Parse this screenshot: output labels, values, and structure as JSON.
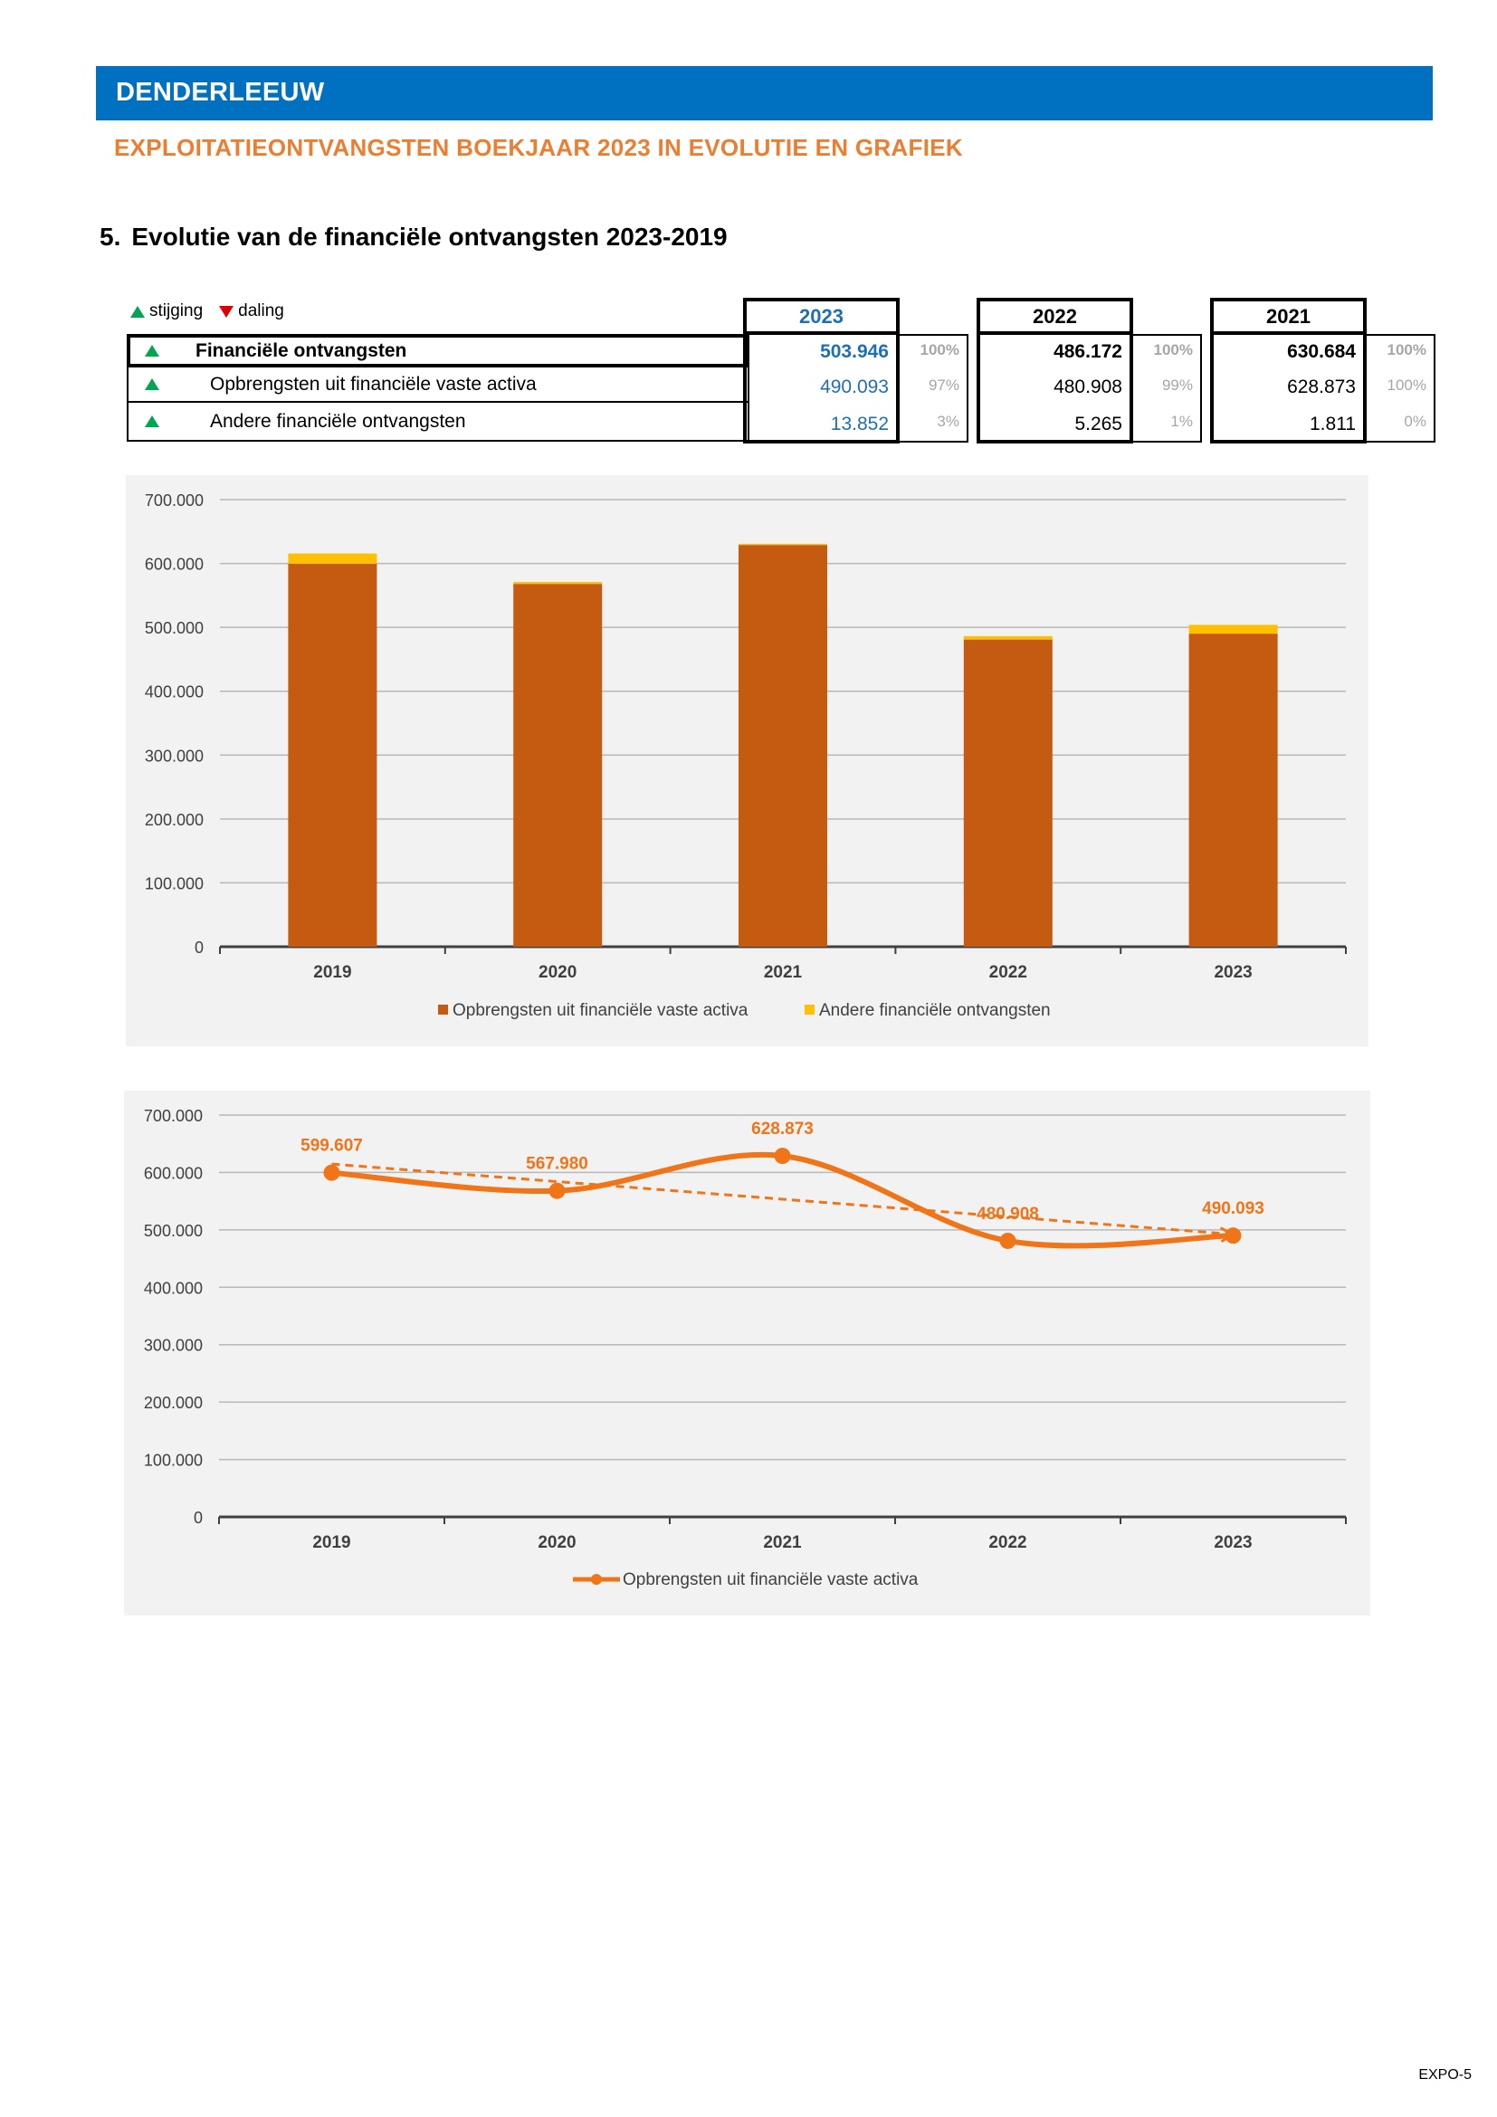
{
  "header": {
    "title": "DENDERLEEUW"
  },
  "subtitle": "EXPLOITATIEONTVANGSTEN BOEKJAAR 2023 IN EVOLUTIE EN GRAFIEK",
  "section": {
    "number": "5.",
    "title": "Evolutie van de financiële ontvangsten 2023-2019"
  },
  "legend_key": {
    "up": "stijging",
    "down": "daling"
  },
  "colors": {
    "header": "#0070c0",
    "subtitle": "#ed7d31",
    "current_year": "#1f6fb5",
    "up": "#00a651",
    "down": "#e00000",
    "series_main": "#c55a11",
    "series_other": "#ffc000",
    "line": "#f07418"
  },
  "table": {
    "rows": [
      {
        "label": "Financiële ontvangsten",
        "trend": "up",
        "bold": true
      },
      {
        "label": "Opbrengsten uit financiële vaste activa",
        "trend": "up",
        "bold": false
      },
      {
        "label": "Andere financiële ontvangsten",
        "trend": "up",
        "bold": false
      }
    ],
    "years": [
      {
        "year": "2023",
        "values": [
          "503.946",
          "490.093",
          "13.852"
        ],
        "pcts": [
          "100%",
          "97%",
          "3%"
        ]
      },
      {
        "year": "2022",
        "values": [
          "486.172",
          "480.908",
          "5.265"
        ],
        "pcts": [
          "100%",
          "99%",
          "1%"
        ]
      },
      {
        "year": "2021",
        "values": [
          "630.684",
          "628.873",
          "1.811"
        ],
        "pcts": [
          "100%",
          "100%",
          "0%"
        ]
      }
    ]
  },
  "chart_data": [
    {
      "type": "bar",
      "stacked": true,
      "categories": [
        "2019",
        "2020",
        "2021",
        "2022",
        "2023"
      ],
      "series": [
        {
          "name": "Opbrengsten uit financiële vaste activa",
          "values": [
            599607,
            567980,
            628873,
            480908,
            490093
          ],
          "color": "#c55a11"
        },
        {
          "name": "Andere financiële ontvangsten",
          "values": [
            16000,
            3000,
            1811,
            5265,
            13852
          ],
          "color": "#ffc000"
        }
      ],
      "ylim": [
        0,
        700000
      ],
      "yticks": [
        "0",
        "100.000",
        "200.000",
        "300.000",
        "400.000",
        "500.000",
        "600.000",
        "700.000"
      ],
      "grid": true,
      "legend": "bottom"
    },
    {
      "type": "line",
      "categories": [
        "2019",
        "2020",
        "2021",
        "2022",
        "2023"
      ],
      "series": [
        {
          "name": "Opbrengsten uit financiële vaste activa",
          "values": [
            599607,
            567980,
            628873,
            480908,
            490093
          ],
          "labels": [
            "599.607",
            "567.980",
            "628.873",
            "480.908",
            "490.093"
          ],
          "color": "#f07418"
        }
      ],
      "trendline": "linear",
      "ylim": [
        0,
        700000
      ],
      "yticks": [
        "0",
        "100.000",
        "200.000",
        "300.000",
        "400.000",
        "500.000",
        "600.000",
        "700.000"
      ],
      "grid": true,
      "legend": "bottom"
    }
  ],
  "page_number": "EXPO-5"
}
